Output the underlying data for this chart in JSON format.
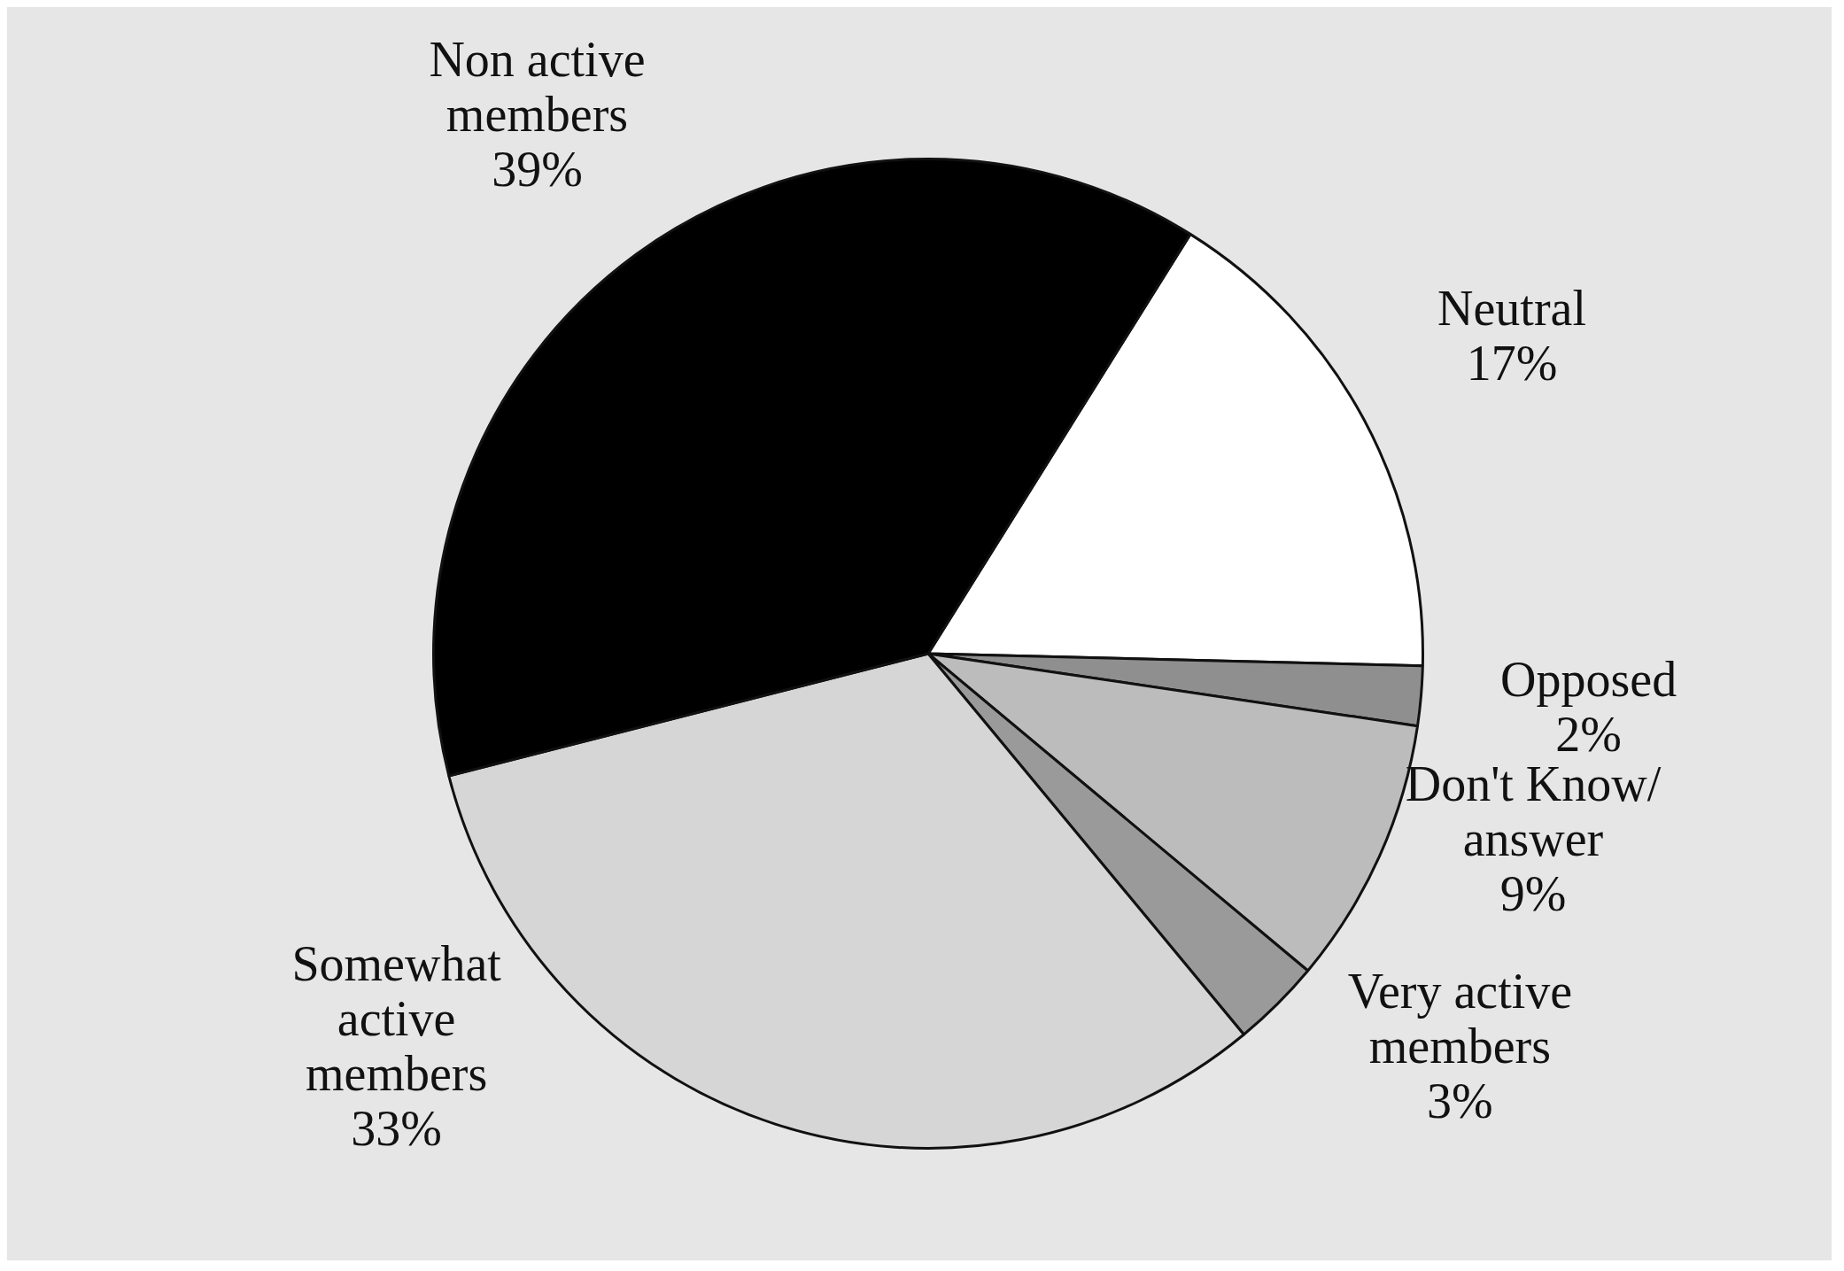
{
  "chart_data": {
    "type": "pie",
    "categories": [
      "Neutral",
      "Opposed",
      "Don't Know/ answer",
      "Very active members",
      "Somewhat active members",
      "Non active members"
    ],
    "values": [
      17,
      2,
      9,
      3,
      33,
      39
    ],
    "colors": [
      "#ffffff",
      "#8f8f8f",
      "#bcbcbc",
      "#9a9a9a",
      "#d6d6d6",
      "#000000"
    ],
    "value_labels": [
      "17%",
      "2%",
      "9%",
      "3%",
      "33%",
      "39%"
    ],
    "legend": false
  }
}
